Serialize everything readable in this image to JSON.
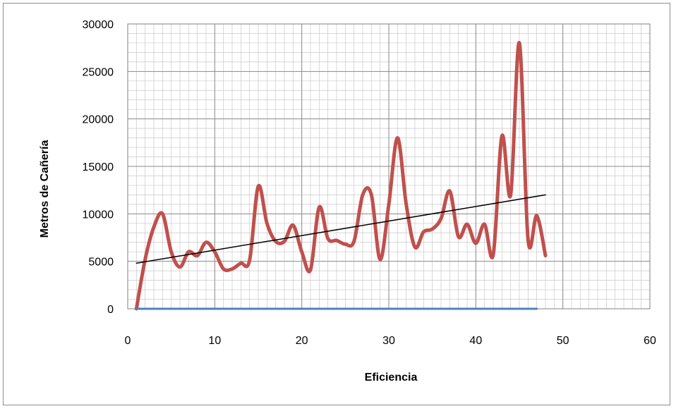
{
  "chart_data": {
    "type": "line",
    "title": "",
    "xlabel": "Eficiencia",
    "ylabel": "Metros de Cañería",
    "xlim": [
      0,
      60
    ],
    "ylim": [
      0,
      30000
    ],
    "x_ticks": [
      0,
      10,
      20,
      30,
      40,
      50,
      60
    ],
    "y_ticks": [
      0,
      5000,
      10000,
      15000,
      20000,
      25000,
      30000
    ],
    "grid": true,
    "legend": "none",
    "series": [
      {
        "color": "#c0504d",
        "style": "smooth",
        "x": [
          1,
          2,
          3,
          4,
          5,
          6,
          7,
          8,
          9,
          10,
          11,
          12,
          13,
          14,
          15,
          16,
          17,
          18,
          19,
          20,
          21,
          22,
          23,
          24,
          25,
          26,
          27,
          28,
          29,
          30,
          31,
          32,
          33,
          34,
          35,
          36,
          37,
          38,
          39,
          40,
          41,
          42,
          43,
          44,
          45,
          46,
          47,
          48
        ],
        "values": [
          0,
          5200,
          8600,
          10000,
          6000,
          4400,
          6000,
          5600,
          7000,
          6000,
          4200,
          4200,
          4800,
          5100,
          12900,
          9000,
          7100,
          7100,
          8800,
          6000,
          4100,
          10700,
          7400,
          7200,
          6800,
          7100,
          12000,
          12000,
          5200,
          11000,
          18000,
          11000,
          6500,
          8100,
          8400,
          9500,
          12400,
          7600,
          8900,
          6900,
          8900,
          5700,
          18200,
          12000,
          28000,
          7300,
          9800,
          5600
        ]
      },
      {
        "color": "#4f81bd",
        "style": "straight",
        "x": [
          1,
          47
        ],
        "values": [
          0,
          0
        ]
      },
      {
        "color": "#000000",
        "style": "trendline",
        "x": [
          1,
          48
        ],
        "values": [
          4800,
          12000
        ]
      }
    ]
  }
}
